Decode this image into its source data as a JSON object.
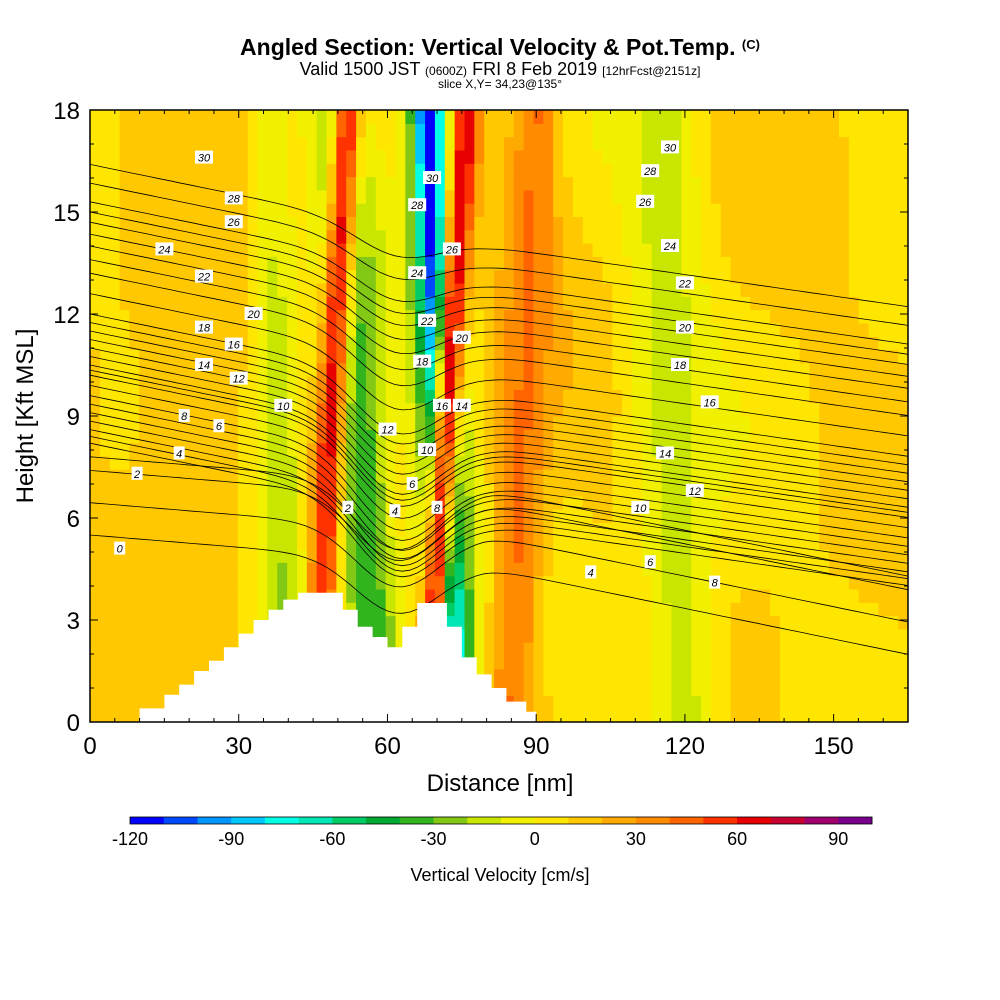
{
  "title": {
    "main": "Angled Section: Vertical Velocity & Pot.Temp.",
    "tag": "(C)",
    "valid_prefix": "Valid 1500 JST",
    "utc": "(0600Z)",
    "date": "FRI 8 Feb 2019",
    "forecast": "[12hrFcst@2151z]",
    "slice": "slice X,Y= 34,23@135°"
  },
  "chart_data": {
    "type": "heatmap",
    "xlabel": "Distance [nm]",
    "ylabel": "Height [Kft MSL]",
    "xlim": [
      0,
      165
    ],
    "ylim": [
      0,
      18
    ],
    "xticks": [
      0,
      30,
      60,
      90,
      120,
      150
    ],
    "yticks": [
      0,
      3,
      6,
      9,
      12,
      15,
      18
    ],
    "colorbar": {
      "label": "Vertical Velocity [cm/s]",
      "range": [
        -120,
        100
      ],
      "ticks": [
        -120,
        -90,
        -60,
        -30,
        0,
        30,
        60,
        90
      ],
      "colors": [
        "#0000ff",
        "#0048ff",
        "#0096ff",
        "#00c8ff",
        "#00ffe6",
        "#00e6b4",
        "#00cc66",
        "#00aa32",
        "#32b41e",
        "#82c814",
        "#c8e600",
        "#f0f000",
        "#ffe600",
        "#ffc800",
        "#ffaa00",
        "#ff8c00",
        "#ff6400",
        "#ff3200",
        "#e60000",
        "#c80032",
        "#a0006e",
        "#78008c"
      ]
    },
    "vertical_velocity_bands": [
      {
        "x_top": 50,
        "x_bottom": 58,
        "half_width": 6,
        "value": -40
      },
      {
        "x_top": 69,
        "x_bottom": 73,
        "half_width": 5,
        "value": -75
      },
      {
        "x_top": 68,
        "x_bottom": 73,
        "half_width": 2,
        "value": -115
      },
      {
        "x_top": 52,
        "x_bottom": 45,
        "half_width": 3,
        "value": 65
      },
      {
        "x_top": 76,
        "x_bottom": 68,
        "half_width": 3,
        "value": 70
      },
      {
        "x_top": 90,
        "x_bottom": 85,
        "half_width": 5,
        "value": 40
      },
      {
        "x_top": 35,
        "x_bottom": 40,
        "half_width": 5,
        "value": -25
      },
      {
        "x_top": 25,
        "x_bottom": 15,
        "half_width": 14,
        "value": 15
      },
      {
        "x_top": 115,
        "x_bottom": 120,
        "half_width": 8,
        "value": -15
      }
    ],
    "terrain_profile": [
      [
        0,
        0
      ],
      [
        10,
        0
      ],
      [
        10,
        0.4
      ],
      [
        15,
        0.4
      ],
      [
        15,
        0.8
      ],
      [
        18,
        0.8
      ],
      [
        18,
        1.1
      ],
      [
        21,
        1.1
      ],
      [
        21,
        1.5
      ],
      [
        24,
        1.5
      ],
      [
        24,
        1.8
      ],
      [
        27,
        1.8
      ],
      [
        27,
        2.2
      ],
      [
        30,
        2.2
      ],
      [
        30,
        2.6
      ],
      [
        33,
        2.6
      ],
      [
        33,
        3.0
      ],
      [
        36,
        3.0
      ],
      [
        36,
        3.3
      ],
      [
        39,
        3.3
      ],
      [
        39,
        3.6
      ],
      [
        42,
        3.6
      ],
      [
        42,
        3.8
      ],
      [
        51,
        3.8
      ],
      [
        51,
        3.3
      ],
      [
        54,
        3.3
      ],
      [
        54,
        2.8
      ],
      [
        57,
        2.8
      ],
      [
        57,
        2.5
      ],
      [
        60,
        2.5
      ],
      [
        60,
        2.2
      ],
      [
        63,
        2.2
      ],
      [
        63,
        2.8
      ],
      [
        66,
        2.8
      ],
      [
        66,
        3.5
      ],
      [
        72,
        3.5
      ],
      [
        72,
        2.8
      ],
      [
        75,
        2.8
      ],
      [
        75,
        1.9
      ],
      [
        78,
        1.9
      ],
      [
        78,
        1.4
      ],
      [
        81,
        1.4
      ],
      [
        81,
        1.0
      ],
      [
        84,
        1.0
      ],
      [
        84,
        0.6
      ],
      [
        88,
        0.6
      ],
      [
        88,
        0.3
      ],
      [
        90,
        0.3
      ],
      [
        90,
        0
      ],
      [
        165,
        0
      ]
    ],
    "theta_contours": {
      "unit": "C",
      "interval": 1,
      "labeled_values": [
        0,
        2,
        4,
        6,
        8,
        10,
        12,
        14,
        16,
        18,
        20,
        22,
        24,
        26,
        28,
        30
      ],
      "levels_at_x0_kft": [
        [
          0,
          5.5
        ],
        [
          2,
          7.4
        ],
        [
          4,
          8.2
        ],
        [
          6,
          8.6
        ],
        [
          8,
          9.1
        ],
        [
          10,
          9.6
        ],
        [
          12,
          10.2
        ],
        [
          14,
          10.5
        ],
        [
          16,
          11.0
        ],
        [
          18,
          11.5
        ],
        [
          20,
          12.0
        ],
        [
          22,
          13.2
        ],
        [
          24,
          14.0
        ],
        [
          26,
          14.7
        ],
        [
          28,
          15.3
        ],
        [
          30,
          16.4
        ]
      ]
    },
    "theta_labels": [
      {
        "text": "0",
        "x": 6,
        "y": 5.1
      },
      {
        "text": "2",
        "x": 9.5,
        "y": 7.3
      },
      {
        "text": "4",
        "x": 18,
        "y": 7.9
      },
      {
        "text": "6",
        "x": 26,
        "y": 8.7
      },
      {
        "text": "8",
        "x": 19,
        "y": 9.0
      },
      {
        "text": "12",
        "x": 30,
        "y": 10.1
      },
      {
        "text": "14",
        "x": 23,
        "y": 10.5
      },
      {
        "text": "16",
        "x": 29,
        "y": 11.1
      },
      {
        "text": "18",
        "x": 23,
        "y": 11.6
      },
      {
        "text": "10",
        "x": 39,
        "y": 9.3
      },
      {
        "text": "20",
        "x": 33,
        "y": 12.0
      },
      {
        "text": "22",
        "x": 23,
        "y": 13.1
      },
      {
        "text": "24",
        "x": 15,
        "y": 13.9
      },
      {
        "text": "26",
        "x": 29,
        "y": 14.7
      },
      {
        "text": "28",
        "x": 29,
        "y": 15.4
      },
      {
        "text": "30",
        "x": 23,
        "y": 16.6
      },
      {
        "text": "2",
        "x": 52,
        "y": 6.3
      },
      {
        "text": "4",
        "x": 61.5,
        "y": 6.2
      },
      {
        "text": "6",
        "x": 65,
        "y": 7.0
      },
      {
        "text": "8",
        "x": 70,
        "y": 6.3
      },
      {
        "text": "10",
        "x": 68,
        "y": 8.0
      },
      {
        "text": "12",
        "x": 60,
        "y": 8.6
      },
      {
        "text": "16",
        "x": 71,
        "y": 9.3
      },
      {
        "text": "14",
        "x": 75,
        "y": 9.3
      },
      {
        "text": "18",
        "x": 67,
        "y": 10.6
      },
      {
        "text": "20",
        "x": 75,
        "y": 11.3
      },
      {
        "text": "22",
        "x": 68,
        "y": 11.8
      },
      {
        "text": "24",
        "x": 66,
        "y": 13.2
      },
      {
        "text": "26",
        "x": 73,
        "y": 13.9
      },
      {
        "text": "28",
        "x": 66,
        "y": 15.2
      },
      {
        "text": "30",
        "x": 69,
        "y": 16.0
      },
      {
        "text": "4",
        "x": 101,
        "y": 4.4
      },
      {
        "text": "6",
        "x": 113,
        "y": 4.7
      },
      {
        "text": "8",
        "x": 126,
        "y": 4.1
      },
      {
        "text": "10",
        "x": 111,
        "y": 6.3
      },
      {
        "text": "12",
        "x": 122,
        "y": 6.8
      },
      {
        "text": "14",
        "x": 116,
        "y": 7.9
      },
      {
        "text": "16",
        "x": 125,
        "y": 9.4
      },
      {
        "text": "18",
        "x": 119,
        "y": 10.5
      },
      {
        "text": "20",
        "x": 120,
        "y": 11.6
      },
      {
        "text": "22",
        "x": 120,
        "y": 12.9
      },
      {
        "text": "24",
        "x": 117,
        "y": 14.0
      },
      {
        "text": "26",
        "x": 112,
        "y": 15.3
      },
      {
        "text": "28",
        "x": 113,
        "y": 16.2
      },
      {
        "text": "30",
        "x": 117,
        "y": 16.9
      }
    ]
  }
}
